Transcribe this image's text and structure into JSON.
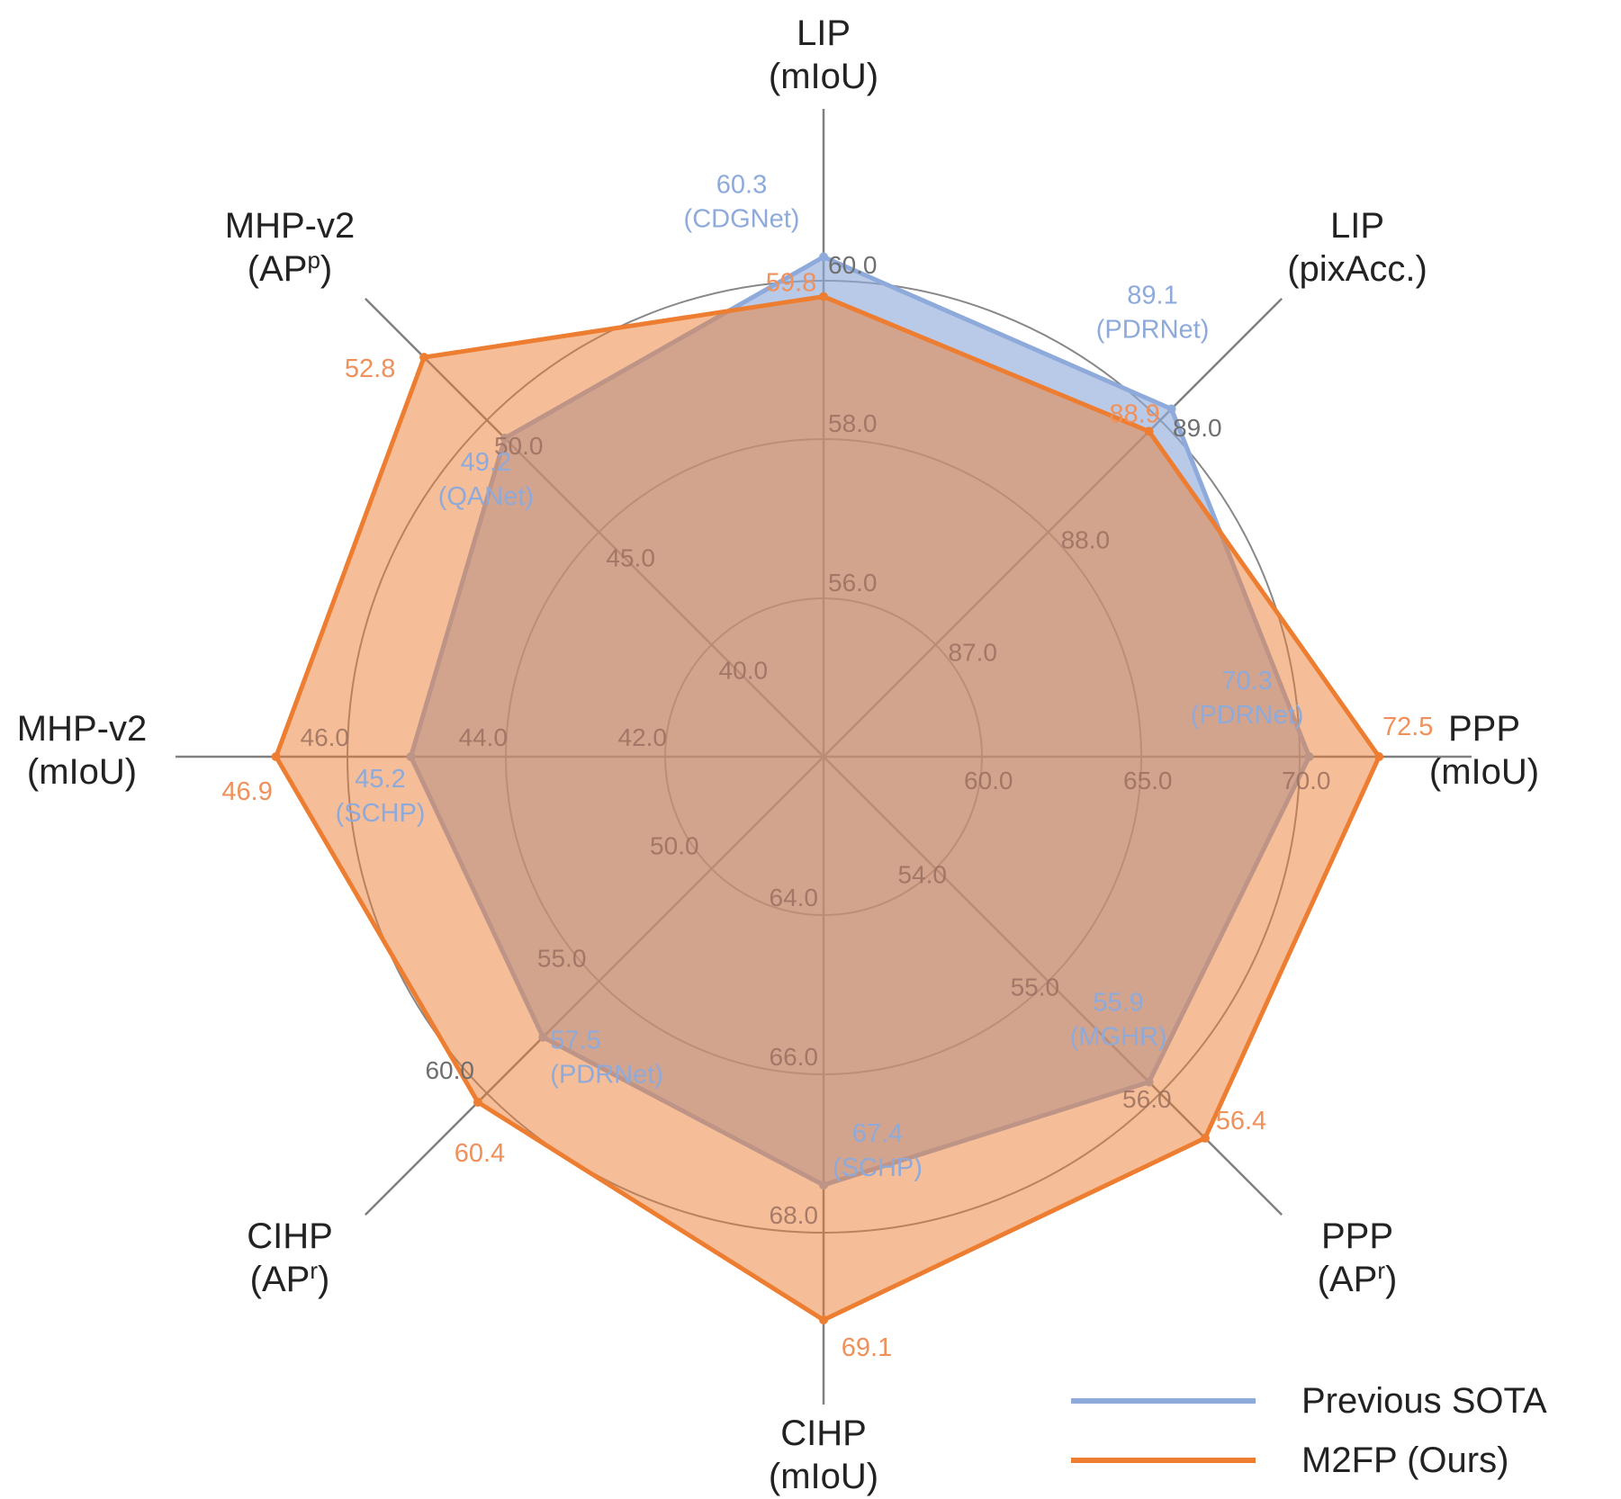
{
  "chart_data": {
    "type": "radar",
    "axes": [
      {
        "title": [
          "LIP",
          "(mIoU)"
        ],
        "ticks": [
          "56.0",
          "58.0",
          "60.0"
        ],
        "range": [
          54,
          60
        ]
      },
      {
        "title": [
          "LIP",
          "(pixAcc.)"
        ],
        "ticks": [
          "87.0",
          "88.0",
          "89.0"
        ],
        "range": [
          86,
          89
        ]
      },
      {
        "title": [
          "PPP",
          "(mIoU)"
        ],
        "ticks": [
          "60.0",
          "65.0",
          "70.0"
        ],
        "range": [
          55,
          70
        ]
      },
      {
        "title": [
          "PPP",
          "(APr)"
        ],
        "ticks": [
          "54.0",
          "55.0",
          "56.0"
        ],
        "range": [
          53,
          56
        ]
      },
      {
        "title": [
          "CIHP",
          "(mIoU)"
        ],
        "ticks": [
          "64.0",
          "66.0",
          "68.0"
        ],
        "range": [
          62,
          68
        ]
      },
      {
        "title": [
          "CIHP",
          "(APr)"
        ],
        "ticks": [
          "50.0",
          "55.0",
          "60.0"
        ],
        "range": [
          45,
          60
        ]
      },
      {
        "title": [
          "MHP-v2",
          "(mIoU)"
        ],
        "ticks": [
          "42.0",
          "44.0",
          "46.0"
        ],
        "range": [
          40,
          46
        ]
      },
      {
        "title": [
          "MHP-v2",
          "(APp)"
        ],
        "ticks": [
          "40.0",
          "45.0",
          "50.0"
        ],
        "range": [
          35,
          50
        ]
      }
    ],
    "series": [
      {
        "name": "Previous SOTA",
        "color": "#8eaadb",
        "values": [
          60.3,
          89.1,
          70.3,
          55.9,
          67.4,
          57.5,
          45.2,
          49.2
        ],
        "methods": [
          "(CDGNet)",
          "(PDRNet)",
          "(PDRNet)",
          "(MGHR)",
          "(SCHP)",
          "(PDRNet)",
          "(SCHP)",
          "(QANet)"
        ],
        "value_labels": [
          "60.3",
          "89.1",
          "70.3",
          "55.9",
          "67.4",
          "57.5",
          "45.2",
          "49.2"
        ]
      },
      {
        "name": "M2FP (Ours)",
        "color": "#ed7d31",
        "values": [
          59.8,
          88.9,
          72.5,
          56.4,
          69.1,
          60.4,
          46.9,
          52.8
        ],
        "value_labels": [
          "59.8",
          "88.9",
          "72.5",
          "56.4",
          "69.1",
          "60.4",
          "46.9",
          "52.8"
        ]
      }
    ],
    "legend": {
      "position": "bottom-right",
      "items": [
        "Previous SOTA",
        "M2FP (Ours)"
      ]
    },
    "colors": {
      "sota": "#8eaadb",
      "ours": "#ed7d31",
      "ours_label": "#f0905a",
      "axis": "#808080",
      "grid_ring": "#888888"
    }
  }
}
